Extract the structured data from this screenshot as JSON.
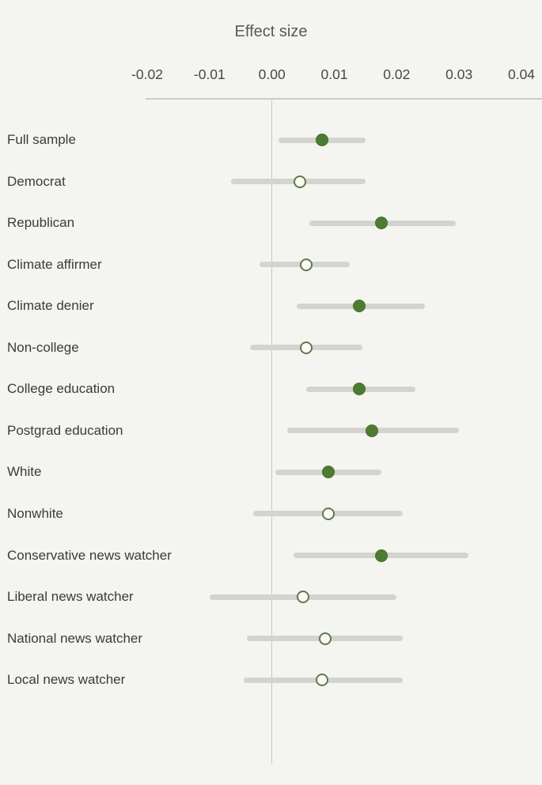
{
  "chart_data": {
    "type": "scatter",
    "variant": "forest-plot",
    "title": "Effect size",
    "xlabel": "Effect size",
    "xlim": [
      -0.02,
      0.04
    ],
    "xticks": [
      -0.02,
      -0.01,
      0,
      0.01,
      0.02,
      0.03,
      0.04
    ],
    "xtick_labels": [
      "-0.02",
      "-0.01",
      "0.00",
      "0.01",
      "0.02",
      "0.03",
      "0.04"
    ],
    "zero_reference_line": 0,
    "grid": false,
    "legend": "none",
    "marker_styles": {
      "filled": "solid green circle (CI excludes zero)",
      "open": "open green-ring circle (CI includes zero)"
    },
    "rows": [
      {
        "label": "Full sample",
        "value": 0.008,
        "ci_low": 0.001,
        "ci_high": 0.015,
        "marker": "filled"
      },
      {
        "label": "Democrat",
        "value": 0.0045,
        "ci_low": -0.0065,
        "ci_high": 0.015,
        "marker": "open"
      },
      {
        "label": "Republican",
        "value": 0.0175,
        "ci_low": 0.006,
        "ci_high": 0.0295,
        "marker": "filled"
      },
      {
        "label": "Climate affirmer",
        "value": 0.0055,
        "ci_low": -0.002,
        "ci_high": 0.0125,
        "marker": "open"
      },
      {
        "label": "Climate denier",
        "value": 0.014,
        "ci_low": 0.004,
        "ci_high": 0.0245,
        "marker": "filled"
      },
      {
        "label": "Non-college",
        "value": 0.0055,
        "ci_low": -0.0035,
        "ci_high": 0.0145,
        "marker": "open"
      },
      {
        "label": "College education",
        "value": 0.014,
        "ci_low": 0.0055,
        "ci_high": 0.023,
        "marker": "filled"
      },
      {
        "label": "Postgrad education",
        "value": 0.016,
        "ci_low": 0.0025,
        "ci_high": 0.03,
        "marker": "filled"
      },
      {
        "label": "White",
        "value": 0.009,
        "ci_low": 0.0005,
        "ci_high": 0.0175,
        "marker": "filled"
      },
      {
        "label": "Nonwhite",
        "value": 0.009,
        "ci_low": -0.003,
        "ci_high": 0.021,
        "marker": "open"
      },
      {
        "label": "Conservative news watcher",
        "value": 0.0175,
        "ci_low": 0.0035,
        "ci_high": 0.0315,
        "marker": "filled"
      },
      {
        "label": "Liberal news watcher",
        "value": 0.005,
        "ci_low": -0.01,
        "ci_high": 0.02,
        "marker": "open"
      },
      {
        "label": "National news watcher",
        "value": 0.0085,
        "ci_low": -0.004,
        "ci_high": 0.021,
        "marker": "open"
      },
      {
        "label": "Local news watcher",
        "value": 0.008,
        "ci_low": -0.0045,
        "ci_high": 0.021,
        "marker": "open"
      }
    ]
  },
  "colors": {
    "background": "#f4f4f1",
    "point_filled": "#4d7c31",
    "point_ring": "#5f7a47",
    "ci_bar": "#d3d3cf",
    "axis_line": "#cbcbc9",
    "category_text": "#3b3b3b",
    "tick_text": "#474747",
    "title_text": "#595959"
  }
}
